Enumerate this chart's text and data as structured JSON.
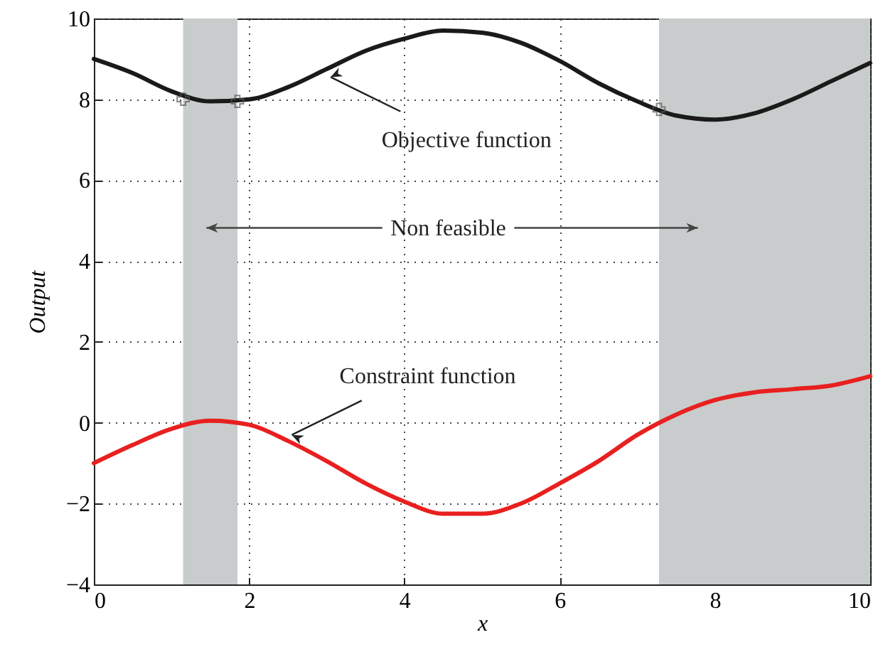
{
  "chart_data": {
    "type": "line",
    "xlabel": "x",
    "ylabel": "Output",
    "xlim": [
      0,
      10
    ],
    "xticks": [
      0,
      2,
      4,
      6,
      8,
      10
    ],
    "ylim": [
      -4,
      10
    ],
    "yticks": [
      -4,
      -2,
      0,
      2,
      4,
      6,
      8,
      10
    ],
    "grid": true,
    "line_style": "solid",
    "series": [
      {
        "color": "#1a1a1a",
        "x": [
          0,
          0.5,
          1.0,
          1.5,
          2.0,
          2.5,
          3.0,
          3.5,
          4.0,
          4.5,
          5.0,
          5.5,
          6.0,
          6.5,
          7.0,
          7.5,
          8.0,
          8.5,
          9.0,
          9.5,
          10
        ],
        "values": [
          9.0,
          8.65,
          8.2,
          7.95,
          8.0,
          8.3,
          8.75,
          9.2,
          9.5,
          9.7,
          9.65,
          9.4,
          8.95,
          8.4,
          7.95,
          7.6,
          7.5,
          7.65,
          8.0,
          8.45,
          8.9
        ]
      },
      {
        "color": "#e8201f",
        "x": [
          0,
          0.5,
          1.0,
          1.5,
          2.0,
          2.5,
          3.0,
          3.5,
          4.0,
          4.5,
          5.0,
          5.5,
          6.0,
          6.5,
          7.0,
          7.5,
          8.0,
          8.5,
          9.0,
          9.5,
          10
        ],
        "values": [
          -1.0,
          -0.55,
          -0.15,
          0.05,
          -0.05,
          -0.45,
          -0.95,
          -1.5,
          -1.95,
          -2.25,
          -2.25,
          -2.0,
          -1.5,
          -0.95,
          -0.3,
          0.2,
          0.56,
          0.75,
          0.83,
          0.92,
          1.15
        ]
      },
      {
        "type": "scatter",
        "color": "#555555",
        "marker": "cross",
        "x": [
          1.15,
          1.85,
          7.28
        ],
        "values": [
          8.0,
          7.95,
          7.75
        ]
      }
    ],
    "bands": [
      {
        "axis": "x",
        "from": 1.15,
        "to": 1.85,
        "color": "#c8cccc"
      },
      {
        "axis": "x",
        "from": 7.28,
        "to": 10,
        "color": "#c8cccc"
      }
    ],
    "annotations": [
      {
        "text": "Objective function",
        "x": 3.0,
        "y": 8.75
      },
      {
        "text": "Constraint function",
        "x": 2.5,
        "y": -0.45
      },
      "Non feasible"
    ]
  }
}
